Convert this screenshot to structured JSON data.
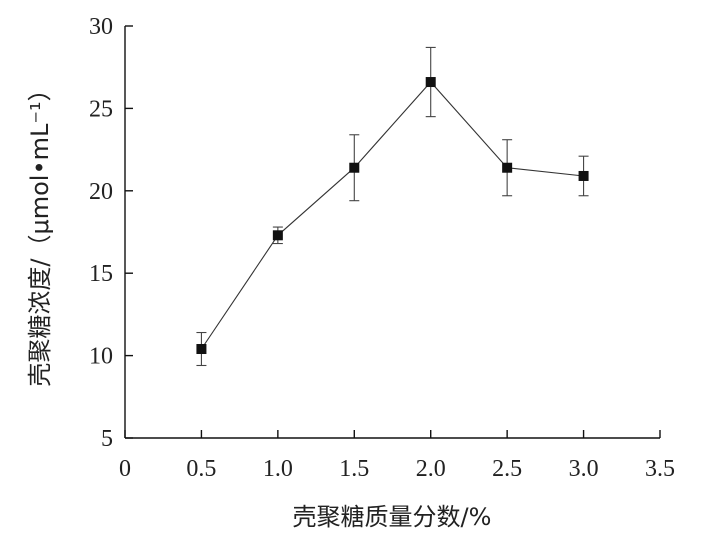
{
  "chart_data": {
    "type": "line",
    "xlabel": "壳聚糖质量分数/%",
    "ylabel": "壳聚糖浓度/（μmol•mL⁻¹）",
    "xlim": [
      0,
      3.5
    ],
    "ylim": [
      5,
      30
    ],
    "x_ticks": [
      "0",
      "0.5",
      "1.0",
      "1.5",
      "2.0",
      "2.5",
      "3.0",
      "3.5"
    ],
    "y_ticks": [
      "5",
      "10",
      "15",
      "20",
      "25",
      "30"
    ],
    "x_tick_values": [
      0,
      0.5,
      1.0,
      1.5,
      2.0,
      2.5,
      3.0,
      3.5
    ],
    "y_tick_values": [
      5,
      10,
      15,
      20,
      25,
      30
    ],
    "series": [
      {
        "x": [
          0.5,
          1.0,
          1.5,
          2.0,
          2.5,
          3.0
        ],
        "y": [
          10.4,
          17.3,
          21.4,
          26.6,
          21.4,
          20.9
        ],
        "error": [
          1.0,
          0.5,
          2.0,
          2.1,
          1.7,
          1.2
        ]
      }
    ],
    "marker": "square",
    "grid": false
  }
}
